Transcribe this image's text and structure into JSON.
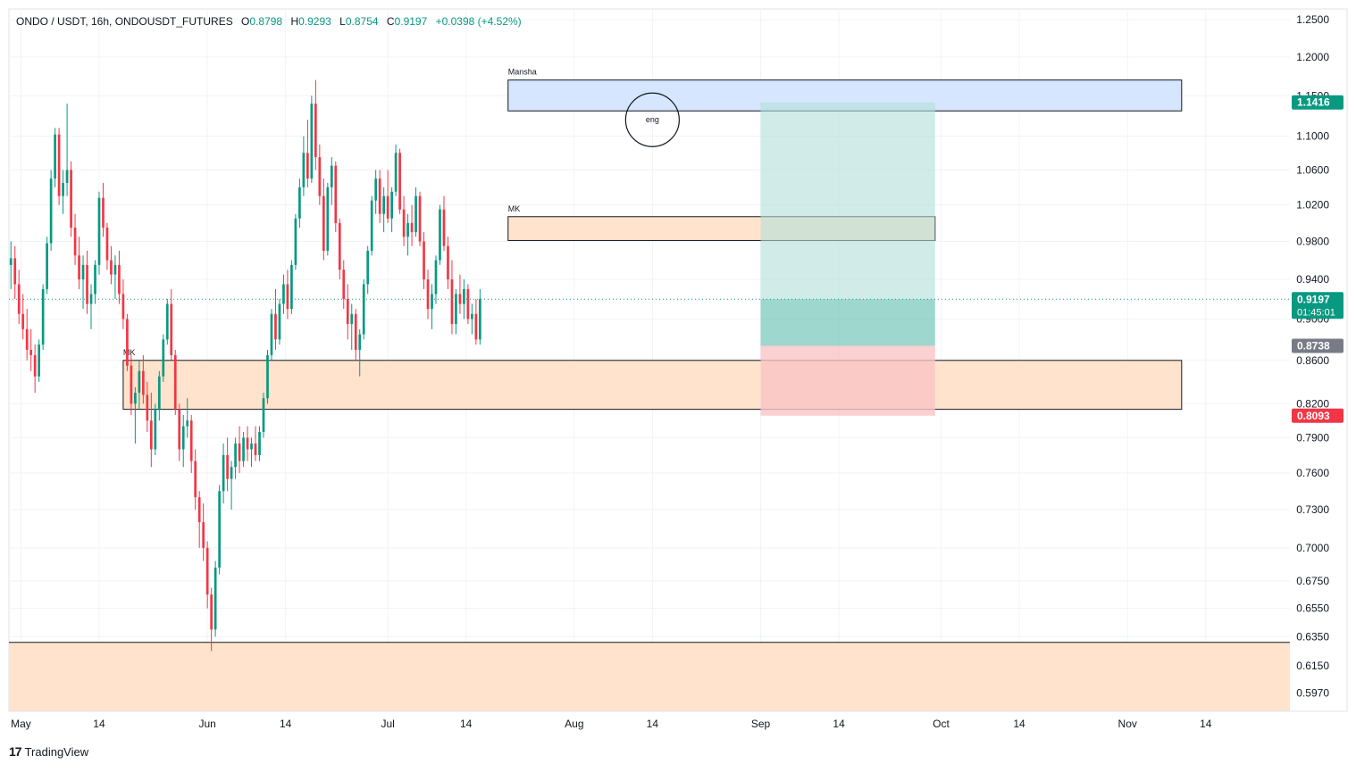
{
  "header": {
    "symbol": "ONDO / USDT, 16h, ONDOUSDT_FUTURES",
    "open_label": "O",
    "open": "0.8798",
    "high_label": "H",
    "high": "0.9293",
    "low_label": "L",
    "low": "0.8754",
    "close_label": "C",
    "close": "0.9197",
    "change": "+0.0398 (+4.52%)"
  },
  "branding": {
    "logo": "17",
    "name": "TradingView"
  },
  "colors": {
    "up": "#089981",
    "down": "#f23645",
    "zone_fill": "#ffe3cc",
    "blue_zone": "#d6e6ff",
    "target": "#b2dfd8",
    "stop": "#f9c4c4"
  },
  "chart_data": {
    "type": "candlestick",
    "timeframe": "16h",
    "y_axis": {
      "ticks": [
        "1.2500",
        "1.2000",
        "1.1500",
        "1.1000",
        "1.0600",
        "1.0200",
        "0.9800",
        "0.9400",
        "0.9000",
        "0.8600",
        "0.8200",
        "0.7900",
        "0.7600",
        "0.7300",
        "0.7000",
        "0.6750",
        "0.6550",
        "0.6350",
        "0.6150",
        "0.5970"
      ],
      "range": [
        0.585,
        1.265
      ],
      "scale": "log"
    },
    "x_axis": {
      "ticks": [
        {
          "label": "May",
          "date": "2024-05-01"
        },
        {
          "label": "14",
          "date": "2024-05-14"
        },
        {
          "label": "Jun",
          "date": "2024-06-01"
        },
        {
          "label": "14",
          "date": "2024-06-14"
        },
        {
          "label": "Jul",
          "date": "2024-07-01"
        },
        {
          "label": "14",
          "date": "2024-07-14"
        },
        {
          "label": "Aug",
          "date": "2024-08-01"
        },
        {
          "label": "14",
          "date": "2024-08-14"
        },
        {
          "label": "Sep",
          "date": "2024-09-01"
        },
        {
          "label": "14",
          "date": "2024-09-14"
        },
        {
          "label": "Oct",
          "date": "2024-10-01"
        },
        {
          "label": "14",
          "date": "2024-10-14"
        },
        {
          "label": "Nov",
          "date": "2024-11-01"
        },
        {
          "label": "14",
          "date": "2024-11-14"
        }
      ],
      "range": [
        "2024-04-29",
        "2024-11-28"
      ]
    },
    "price_labels": [
      {
        "value": "1.1416",
        "kind": "target"
      },
      {
        "value": "0.9197",
        "kind": "last",
        "countdown": "01:45:01"
      },
      {
        "value": "0.8738",
        "kind": "entry"
      },
      {
        "value": "0.8093",
        "kind": "stop"
      }
    ],
    "last_price": 0.9197,
    "zones": [
      {
        "label": "Mansha",
        "top": 1.17,
        "bottom": 1.131,
        "from": "2024-07-21",
        "to": "2024-11-10",
        "style": "blue"
      },
      {
        "label": "MK",
        "top": 1.007,
        "bottom": 0.981,
        "from": "2024-07-21",
        "to": "2024-09-30",
        "style": "orange"
      },
      {
        "label": "MK",
        "top": 0.86,
        "bottom": 0.815,
        "from": "2024-05-18",
        "to": "2024-11-10",
        "style": "orange"
      },
      {
        "label": "",
        "top": 0.631,
        "bottom": 0.585,
        "from": "2024-04-29",
        "to": "2024-11-28",
        "style": "orange"
      }
    ],
    "position": {
      "type": "long",
      "from": "2024-09-01",
      "to": "2024-09-30",
      "entry": 0.8738,
      "target": 1.1416,
      "stop": 0.8093
    },
    "annotations": [
      {
        "text": "eng",
        "date": "2024-08-14",
        "price": 1.12
      }
    ],
    "candles": [
      [
        0.955,
        0.98,
        0.93,
        0.962
      ],
      [
        0.962,
        0.975,
        0.92,
        0.935
      ],
      [
        0.935,
        0.95,
        0.895,
        0.905
      ],
      [
        0.905,
        0.925,
        0.88,
        0.89
      ],
      [
        0.89,
        0.91,
        0.86,
        0.87
      ],
      [
        0.87,
        0.89,
        0.85,
        0.865
      ],
      [
        0.865,
        0.875,
        0.83,
        0.845
      ],
      [
        0.845,
        0.88,
        0.84,
        0.875
      ],
      [
        0.875,
        0.935,
        0.87,
        0.93
      ],
      [
        0.93,
        0.985,
        0.925,
        0.978
      ],
      [
        0.978,
        1.06,
        0.97,
        1.05
      ],
      [
        1.05,
        1.11,
        1.04,
        1.102
      ],
      [
        1.102,
        1.11,
        1.02,
        1.03
      ],
      [
        1.03,
        1.06,
        1.01,
        1.045
      ],
      [
        1.045,
        1.14,
        1.03,
        1.06
      ],
      [
        1.06,
        1.07,
        0.985,
        0.995
      ],
      [
        0.995,
        1.01,
        0.955,
        0.965
      ],
      [
        0.965,
        0.985,
        0.93,
        0.94
      ],
      [
        0.94,
        0.965,
        0.91,
        0.955
      ],
      [
        0.955,
        0.97,
        0.905,
        0.915
      ],
      [
        0.915,
        0.935,
        0.89,
        0.925
      ],
      [
        0.925,
        0.96,
        0.915,
        0.955
      ],
      [
        0.955,
        1.035,
        0.945,
        1.028
      ],
      [
        1.028,
        1.045,
        0.985,
        0.995
      ],
      [
        0.995,
        1.0,
        0.95,
        0.96
      ],
      [
        0.96,
        0.975,
        0.935,
        0.945
      ],
      [
        0.945,
        0.965,
        0.92,
        0.955
      ],
      [
        0.955,
        0.97,
        0.915,
        0.925
      ],
      [
        0.925,
        0.94,
        0.89,
        0.9
      ],
      [
        0.9,
        0.905,
        0.85,
        0.855
      ],
      [
        0.855,
        0.865,
        0.81,
        0.82
      ],
      [
        0.82,
        0.835,
        0.785,
        0.83
      ],
      [
        0.83,
        0.86,
        0.815,
        0.85
      ],
      [
        0.85,
        0.865,
        0.82,
        0.828
      ],
      [
        0.828,
        0.84,
        0.795,
        0.805
      ],
      [
        0.805,
        0.83,
        0.765,
        0.78
      ],
      [
        0.78,
        0.82,
        0.775,
        0.815
      ],
      [
        0.815,
        0.85,
        0.805,
        0.845
      ],
      [
        0.845,
        0.885,
        0.84,
        0.88
      ],
      [
        0.88,
        0.92,
        0.875,
        0.915
      ],
      [
        0.915,
        0.93,
        0.86,
        0.865
      ],
      [
        0.865,
        0.87,
        0.81,
        0.815
      ],
      [
        0.815,
        0.82,
        0.77,
        0.78
      ],
      [
        0.78,
        0.81,
        0.765,
        0.8
      ],
      [
        0.8,
        0.825,
        0.79,
        0.805
      ],
      [
        0.805,
        0.81,
        0.76,
        0.77
      ],
      [
        0.77,
        0.78,
        0.73,
        0.74
      ],
      [
        0.74,
        0.745,
        0.7,
        0.72
      ],
      [
        0.72,
        0.735,
        0.69,
        0.7
      ],
      [
        0.7,
        0.705,
        0.655,
        0.665
      ],
      [
        0.665,
        0.67,
        0.625,
        0.64
      ],
      [
        0.64,
        0.69,
        0.635,
        0.685
      ],
      [
        0.685,
        0.75,
        0.68,
        0.745
      ],
      [
        0.745,
        0.785,
        0.735,
        0.775
      ],
      [
        0.775,
        0.79,
        0.745,
        0.755
      ],
      [
        0.755,
        0.77,
        0.73,
        0.765
      ],
      [
        0.765,
        0.79,
        0.755,
        0.785
      ],
      [
        0.785,
        0.8,
        0.76,
        0.77
      ],
      [
        0.77,
        0.795,
        0.765,
        0.79
      ],
      [
        0.79,
        0.8,
        0.77,
        0.78
      ],
      [
        0.78,
        0.79,
        0.765,
        0.785
      ],
      [
        0.785,
        0.8,
        0.77,
        0.775
      ],
      [
        0.775,
        0.8,
        0.77,
        0.795
      ],
      [
        0.795,
        0.83,
        0.79,
        0.825
      ],
      [
        0.825,
        0.87,
        0.82,
        0.865
      ],
      [
        0.865,
        0.91,
        0.86,
        0.905
      ],
      [
        0.905,
        0.93,
        0.87,
        0.88
      ],
      [
        0.88,
        0.92,
        0.875,
        0.915
      ],
      [
        0.915,
        0.945,
        0.905,
        0.935
      ],
      [
        0.935,
        0.95,
        0.9,
        0.91
      ],
      [
        0.91,
        0.96,
        0.905,
        0.955
      ],
      [
        0.955,
        1.01,
        0.95,
        1.005
      ],
      [
        1.005,
        1.05,
        0.995,
        1.04
      ],
      [
        1.04,
        1.1,
        1.03,
        1.08
      ],
      [
        1.08,
        1.12,
        1.04,
        1.05
      ],
      [
        1.05,
        1.15,
        1.045,
        1.14
      ],
      [
        1.14,
        1.17,
        1.06,
        1.075
      ],
      [
        1.075,
        1.09,
        1.02,
        1.03
      ],
      [
        1.03,
        1.05,
        0.96,
        0.97
      ],
      [
        0.97,
        1.045,
        0.965,
        1.04
      ],
      [
        1.04,
        1.075,
        1.02,
        1.065
      ],
      [
        1.065,
        1.07,
        0.99,
        1.0
      ],
      [
        1.0,
        1.005,
        0.94,
        0.95
      ],
      [
        0.95,
        0.96,
        0.91,
        0.92
      ],
      [
        0.92,
        0.935,
        0.88,
        0.895
      ],
      [
        0.895,
        0.915,
        0.87,
        0.905
      ],
      [
        0.905,
        0.91,
        0.86,
        0.87
      ],
      [
        0.87,
        0.89,
        0.845,
        0.885
      ],
      [
        0.885,
        0.94,
        0.88,
        0.935
      ],
      [
        0.935,
        0.975,
        0.925,
        0.97
      ],
      [
        0.97,
        1.03,
        0.965,
        1.025
      ],
      [
        1.025,
        1.06,
        1.01,
        1.05
      ],
      [
        1.05,
        1.06,
        1.0,
        1.01
      ],
      [
        1.01,
        1.04,
        0.99,
        1.03
      ],
      [
        1.03,
        1.06,
        1.0,
        1.005
      ],
      [
        1.005,
        1.04,
        0.99,
        1.035
      ],
      [
        1.035,
        1.09,
        1.03,
        1.08
      ],
      [
        1.08,
        1.085,
        1.01,
        1.015
      ],
      [
        1.015,
        1.03,
        0.975,
        0.985
      ],
      [
        0.985,
        1.01,
        0.965,
        1.0
      ],
      [
        1.0,
        1.02,
        0.975,
        0.99
      ],
      [
        0.99,
        1.04,
        0.985,
        1.03
      ],
      [
        1.03,
        1.035,
        0.975,
        0.98
      ],
      [
        0.98,
        0.99,
        0.93,
        0.94
      ],
      [
        0.94,
        0.95,
        0.9,
        0.91
      ],
      [
        0.91,
        0.935,
        0.89,
        0.925
      ],
      [
        0.925,
        0.965,
        0.915,
        0.96
      ],
      [
        0.96,
        1.02,
        0.955,
        1.015
      ],
      [
        1.015,
        1.03,
        0.97,
        0.975
      ],
      [
        0.975,
        0.985,
        0.93,
        0.94
      ],
      [
        0.94,
        0.96,
        0.885,
        0.895
      ],
      [
        0.895,
        0.93,
        0.885,
        0.925
      ],
      [
        0.925,
        0.945,
        0.905,
        0.915
      ],
      [
        0.915,
        0.94,
        0.9,
        0.93
      ],
      [
        0.93,
        0.935,
        0.895,
        0.9
      ],
      [
        0.9,
        0.915,
        0.885,
        0.905
      ],
      [
        0.905,
        0.92,
        0.875,
        0.88
      ],
      [
        0.88,
        0.93,
        0.875,
        0.92
      ]
    ]
  }
}
